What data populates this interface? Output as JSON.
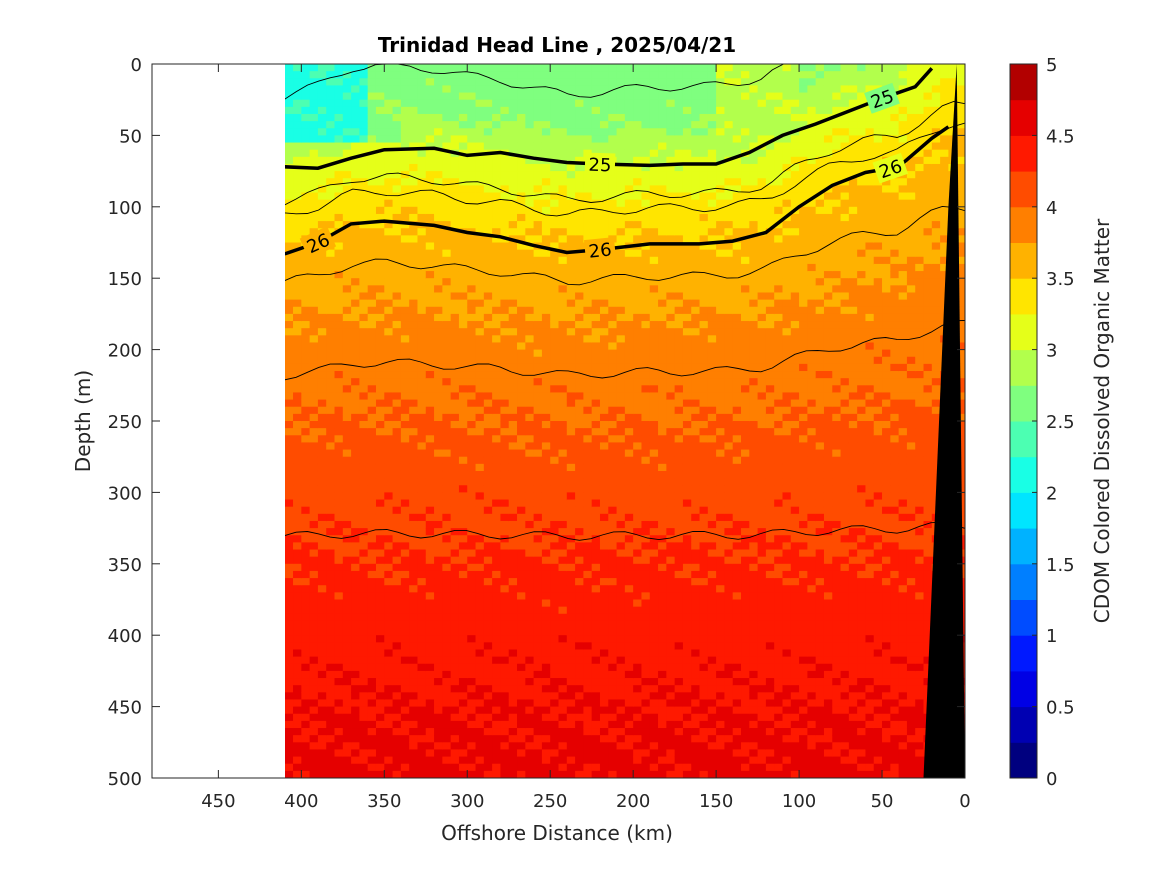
{
  "chart_data": {
    "type": "heatmap",
    "title": "Trinidad Head Line , 2025/04/21",
    "xlabel": "Offshore Distance (km)",
    "ylabel": "Depth (m)",
    "colorbar_label": "CDOM Colored Dissolved Organic Matter",
    "xlim": [
      490,
      0
    ],
    "ylim": [
      0,
      500
    ],
    "x_reversed": true,
    "y_reversed": true,
    "clim": [
      0,
      5
    ],
    "x_ticks": [
      "450",
      "400",
      "350",
      "300",
      "250",
      "200",
      "150",
      "100",
      "50",
      "0"
    ],
    "y_ticks": [
      "0",
      "50",
      "100",
      "150",
      "200",
      "250",
      "300",
      "350",
      "400",
      "450",
      "500"
    ],
    "colorbar_ticks": [
      "0",
      "0.5",
      "1",
      "1.5",
      "2",
      "2.5",
      "3",
      "3.5",
      "4",
      "4.5",
      "5"
    ],
    "colormap": [
      "#00007f",
      "#0000b2",
      "#0000e5",
      "#0019ff",
      "#004cff",
      "#007fff",
      "#00b2ff",
      "#00e5ff",
      "#19ffe5",
      "#4cffb2",
      "#7fff7f",
      "#b2ff4c",
      "#e5ff19",
      "#ffe500",
      "#ffb200",
      "#ff7f00",
      "#ff4c00",
      "#ff1900",
      "#e50000",
      "#b20000"
    ],
    "data_extent_x": [
      410,
      0
    ],
    "depth_profile": {
      "depth": [
        0,
        40,
        60,
        80,
        100,
        120,
        140,
        170,
        200,
        250,
        300,
        350,
        400,
        450,
        500
      ],
      "value": [
        2.6,
        2.7,
        2.95,
        3.15,
        3.35,
        3.5,
        3.6,
        3.72,
        3.85,
        4.0,
        4.15,
        4.28,
        4.4,
        4.5,
        4.55
      ]
    },
    "nearshore_surface_value": 3.0,
    "offshore_surface_value": 2.2,
    "isopycnals": [
      {
        "label": "25",
        "x": [
          410,
          390,
          370,
          350,
          320,
          300,
          280,
          260,
          240,
          220,
          190,
          170,
          150,
          130,
          110,
          90,
          70,
          50,
          30,
          20
        ],
        "depth": [
          72,
          73,
          66,
          60,
          59,
          64,
          62,
          66,
          69,
          70,
          71,
          70,
          70,
          62,
          50,
          42,
          33,
          24,
          16,
          3
        ],
        "label_x": 220,
        "label2_x": 50
      },
      {
        "label": "26",
        "x": [
          410,
          390,
          370,
          350,
          320,
          300,
          280,
          260,
          240,
          220,
          190,
          160,
          140,
          120,
          100,
          80,
          60,
          40,
          20,
          10
        ],
        "depth": [
          133,
          125,
          112,
          110,
          113,
          118,
          121,
          127,
          132,
          130,
          126,
          126,
          124,
          118,
          100,
          85,
          76,
          72,
          52,
          44
        ],
        "label_x": 390,
        "label2_x": 45,
        "label3_x": 220
      }
    ],
    "thin_contours_depth": [
      15,
      90,
      100,
      148,
      215,
      330
    ],
    "bottom_topography": {
      "x": [
        0,
        25,
        10,
        5
      ],
      "depth": [
        500,
        500,
        100,
        0
      ]
    }
  }
}
